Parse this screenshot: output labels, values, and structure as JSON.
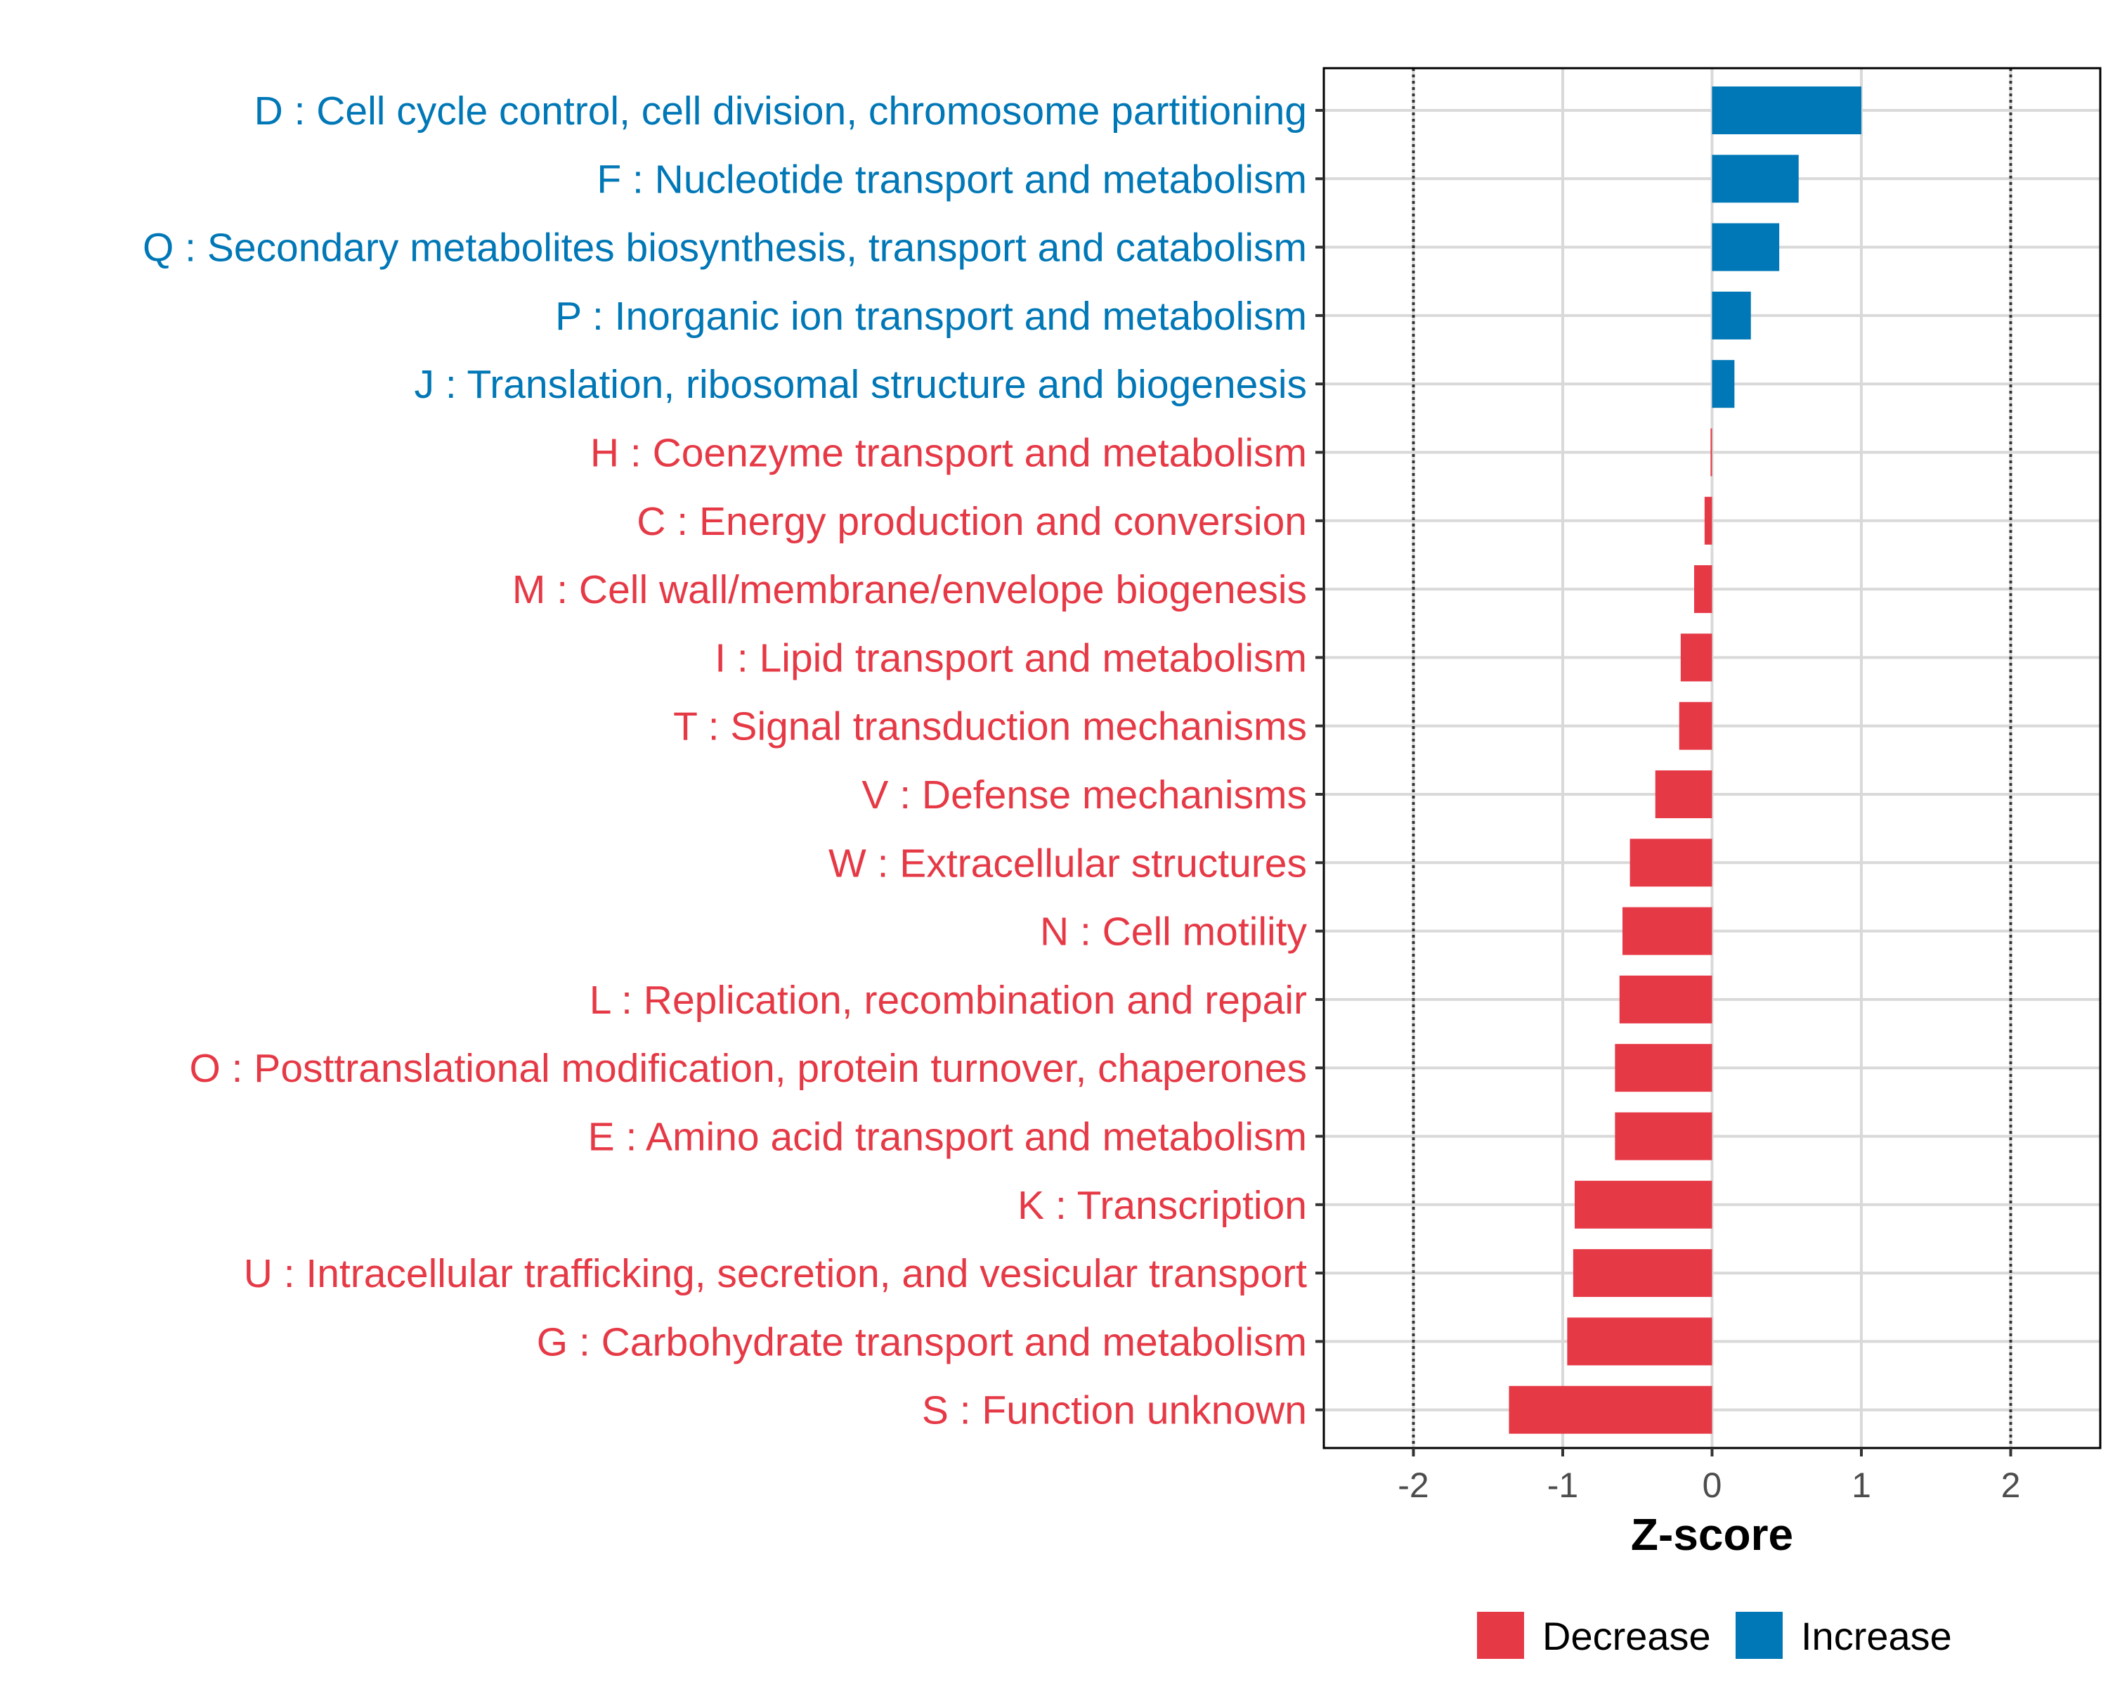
{
  "chart_data": {
    "type": "bar",
    "orientation": "horizontal",
    "title": "",
    "xlabel": "Z-score",
    "ylabel": "",
    "xlim": [
      -2.6,
      2.6
    ],
    "x_ticks": [
      -2,
      -1,
      0,
      1,
      2
    ],
    "x_tick_labels": [
      "-2",
      "-1",
      "0",
      "1",
      "2"
    ],
    "reference_lines": [
      -2,
      2
    ],
    "grid": true,
    "categories": [
      "D : Cell cycle control, cell division, chromosome partitioning",
      "F : Nucleotide transport and metabolism",
      "Q : Secondary metabolites biosynthesis, transport and catabolism",
      "P : Inorganic ion transport and metabolism",
      "J : Translation, ribosomal structure and biogenesis",
      "H : Coenzyme transport and metabolism",
      "C : Energy production and conversion",
      "M : Cell wall/membrane/envelope biogenesis",
      "I : Lipid transport and metabolism",
      "T : Signal transduction mechanisms",
      "V : Defense mechanisms",
      "W : Extracellular structures",
      "N : Cell motility",
      "L : Replication, recombination and repair",
      "O : Posttranslational modification, protein turnover, chaperones",
      "E : Amino acid transport and metabolism",
      "K : Transcription",
      "U : Intracellular trafficking, secretion, and vesicular transport",
      "G : Carbohydrate transport and metabolism",
      "S : Function unknown"
    ],
    "values": [
      1.0,
      0.58,
      0.45,
      0.26,
      0.15,
      -0.01,
      -0.05,
      -0.12,
      -0.21,
      -0.22,
      -0.38,
      -0.55,
      -0.6,
      -0.62,
      -0.65,
      -0.65,
      -0.92,
      -0.93,
      -0.97,
      -1.36
    ],
    "groups": [
      "Increase",
      "Increase",
      "Increase",
      "Increase",
      "Increase",
      "Decrease",
      "Decrease",
      "Decrease",
      "Decrease",
      "Decrease",
      "Decrease",
      "Decrease",
      "Decrease",
      "Decrease",
      "Decrease",
      "Decrease",
      "Decrease",
      "Decrease",
      "Decrease",
      "Decrease"
    ],
    "legend": {
      "position": "bottom",
      "items": [
        {
          "label": "Decrease",
          "color": "#E63946"
        },
        {
          "label": "Increase",
          "color": "#0077B6"
        }
      ]
    }
  },
  "colors": {
    "increase": "#0077B6",
    "decrease": "#E63946",
    "grid": "#D9D9D9",
    "panel_border": "#000000",
    "reference_line": "#333333",
    "tick_text": "#4D4D4D"
  }
}
